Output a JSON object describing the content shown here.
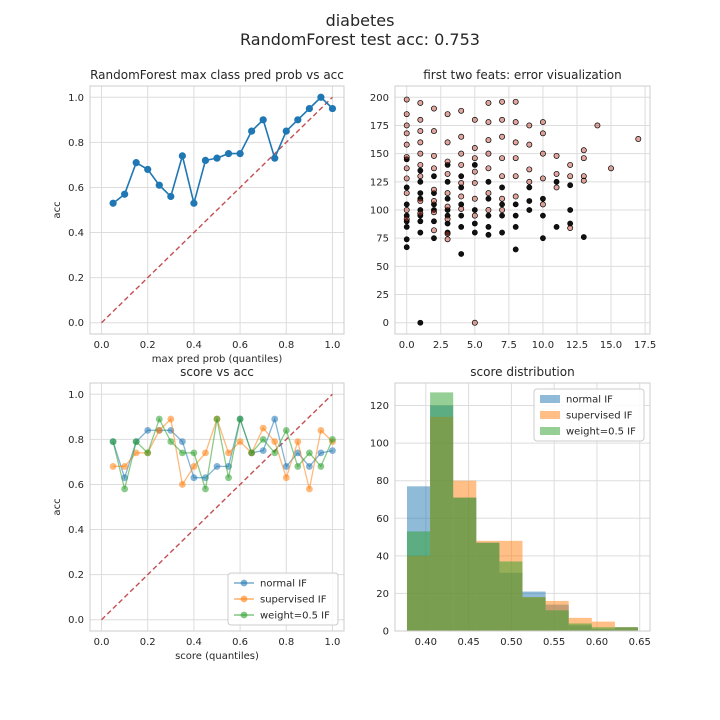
{
  "suptitle": {
    "line1": "diabetes",
    "line2": "RandomForest test acc: 0.753"
  },
  "colors": {
    "blue": "#1f77b4",
    "orange": "#ff7f0e",
    "green": "#2ca02c",
    "diag": "#c44e52",
    "grid": "#dddddd",
    "axes_bg": "#ffffff",
    "spine": "#cccccc",
    "text": "#262626",
    "error_marker": "#c0392b"
  },
  "chart_data": [
    {
      "id": "calibration",
      "type": "line",
      "title": "RandomForest max class pred prob vs acc",
      "xlabel": "max pred prob (quantiles)",
      "ylabel": "acc",
      "xlim": [
        -0.05,
        1.05
      ],
      "ylim": [
        -0.05,
        1.05
      ],
      "xticks": [
        "0.0",
        "0.2",
        "0.4",
        "0.6",
        "0.8",
        "1.0"
      ],
      "yticks": [
        "0.0",
        "0.2",
        "0.4",
        "0.6",
        "0.8",
        "1.0"
      ],
      "grid": true,
      "diagonal": true,
      "series": [
        {
          "color": "blue",
          "x": [
            0.05,
            0.1,
            0.15,
            0.2,
            0.25,
            0.3,
            0.35,
            0.4,
            0.45,
            0.5,
            0.55,
            0.6,
            0.65,
            0.7,
            0.75,
            0.8,
            0.85,
            0.9,
            0.95,
            1.0
          ],
          "y": [
            0.53,
            0.57,
            0.71,
            0.68,
            0.61,
            0.56,
            0.74,
            0.53,
            0.72,
            0.73,
            0.75,
            0.75,
            0.85,
            0.9,
            0.73,
            0.85,
            0.9,
            0.95,
            1.0,
            0.95
          ]
        }
      ]
    },
    {
      "id": "error-scatter",
      "type": "scatter",
      "title": "first two feats: error visualization",
      "xlim": [
        -0.86,
        17.86
      ],
      "ylim": [
        -10,
        210
      ],
      "xticks": [
        "0.0",
        "2.5",
        "5.0",
        "7.5",
        "10.0",
        "12.5",
        "15.0",
        "17.5"
      ],
      "yticks": [
        "0",
        "25",
        "50",
        "75",
        "100",
        "125",
        "150",
        "175",
        "200"
      ],
      "grid": true,
      "legend": "none",
      "correct_points": [
        [
          0,
          145
        ],
        [
          0,
          120
        ],
        [
          0,
          105
        ],
        [
          0,
          95
        ],
        [
          0,
          90
        ],
        [
          0,
          74
        ],
        [
          0,
          67
        ],
        [
          0,
          85
        ],
        [
          1,
          135
        ],
        [
          1,
          125
        ],
        [
          1,
          115
        ],
        [
          1,
          100
        ],
        [
          1,
          95
        ],
        [
          1,
          90
        ],
        [
          1,
          80
        ],
        [
          1,
          0
        ],
        [
          1,
          110
        ],
        [
          2,
          130
        ],
        [
          2,
          115
        ],
        [
          2,
          100
        ],
        [
          2,
          90
        ],
        [
          2,
          75
        ],
        [
          2,
          105
        ],
        [
          3,
          125
        ],
        [
          3,
          110
        ],
        [
          3,
          100
        ],
        [
          3,
          95
        ],
        [
          3,
          88
        ],
        [
          3,
          80
        ],
        [
          3,
          140
        ],
        [
          4,
          120
        ],
        [
          4,
          105
        ],
        [
          4,
          95
        ],
        [
          4,
          85
        ],
        [
          4,
          61
        ],
        [
          4,
          130
        ],
        [
          5,
          100
        ],
        [
          5,
          88
        ],
        [
          5,
          80
        ],
        [
          5,
          140
        ],
        [
          6,
          110
        ],
        [
          6,
          95
        ],
        [
          6,
          85
        ],
        [
          6,
          78
        ],
        [
          6,
          125
        ],
        [
          7,
          120
        ],
        [
          7,
          105
        ],
        [
          7,
          95
        ],
        [
          7,
          80
        ],
        [
          8,
          65
        ],
        [
          8,
          105
        ],
        [
          8,
          95
        ],
        [
          8,
          85
        ],
        [
          9,
          120
        ],
        [
          9,
          100
        ],
        [
          9,
          108
        ],
        [
          10,
          75
        ],
        [
          10,
          95
        ],
        [
          10,
          110
        ],
        [
          11,
          85
        ],
        [
          11,
          125
        ],
        [
          12,
          100
        ],
        [
          12,
          122
        ],
        [
          12,
          88
        ],
        [
          13,
          76
        ]
      ],
      "error_points": [
        [
          0,
          198
        ],
        [
          0,
          185
        ],
        [
          0,
          175
        ],
        [
          0,
          168
        ],
        [
          0,
          158
        ],
        [
          0,
          147
        ],
        [
          0,
          137
        ],
        [
          0,
          128
        ],
        [
          0,
          115
        ],
        [
          0,
          100
        ],
        [
          0,
          92
        ],
        [
          1,
          195
        ],
        [
          1,
          180
        ],
        [
          1,
          170
        ],
        [
          1,
          160
        ],
        [
          1,
          150
        ],
        [
          1,
          140
        ],
        [
          1,
          130
        ],
        [
          1,
          108
        ],
        [
          1,
          97
        ],
        [
          2,
          190
        ],
        [
          2,
          170
        ],
        [
          2,
          148
        ],
        [
          2,
          137
        ],
        [
          2,
          118
        ],
        [
          2,
          108
        ],
        [
          2,
          98
        ],
        [
          2,
          82
        ],
        [
          3,
          185
        ],
        [
          3,
          160
        ],
        [
          3,
          143
        ],
        [
          3,
          132
        ],
        [
          3,
          115
        ],
        [
          3,
          103
        ],
        [
          3,
          92
        ],
        [
          3,
          74
        ],
        [
          3,
          79
        ],
        [
          4,
          188
        ],
        [
          4,
          165
        ],
        [
          4,
          150
        ],
        [
          4,
          140
        ],
        [
          4,
          124
        ],
        [
          4,
          112
        ],
        [
          4,
          101
        ],
        [
          5,
          180
        ],
        [
          5,
          155
        ],
        [
          5,
          146
        ],
        [
          5,
          134
        ],
        [
          5,
          124
        ],
        [
          5,
          110
        ],
        [
          5,
          95
        ],
        [
          5,
          0
        ],
        [
          6,
          195
        ],
        [
          6,
          178
        ],
        [
          6,
          162
        ],
        [
          6,
          150
        ],
        [
          6,
          137
        ],
        [
          6,
          115
        ],
        [
          6,
          100
        ],
        [
          7,
          196
        ],
        [
          7,
          180
        ],
        [
          7,
          165
        ],
        [
          7,
          146
        ],
        [
          7,
          130
        ],
        [
          7,
          110
        ],
        [
          7,
          100
        ],
        [
          8,
          196
        ],
        [
          8,
          178
        ],
        [
          8,
          160
        ],
        [
          8,
          146
        ],
        [
          8,
          130
        ],
        [
          8,
          112
        ],
        [
          9,
          175
        ],
        [
          9,
          158
        ],
        [
          9,
          136
        ],
        [
          9,
          125
        ],
        [
          10,
          178
        ],
        [
          10,
          168
        ],
        [
          10,
          150
        ],
        [
          10,
          128
        ],
        [
          10,
          105
        ],
        [
          11,
          148
        ],
        [
          11,
          132
        ],
        [
          11,
          120
        ],
        [
          12,
          140
        ],
        [
          12,
          130
        ],
        [
          12,
          84
        ],
        [
          13,
          153
        ],
        [
          13,
          146
        ],
        [
          13,
          130
        ],
        [
          13,
          126
        ],
        [
          14,
          175
        ],
        [
          15,
          137
        ],
        [
          17,
          163
        ]
      ]
    },
    {
      "id": "score-vs-acc",
      "type": "line",
      "title": "score vs acc",
      "xlabel": "score (quantiles)",
      "ylabel": "acc",
      "xlim": [
        -0.05,
        1.05
      ],
      "ylim": [
        -0.05,
        1.05
      ],
      "xticks": [
        "0.0",
        "0.2",
        "0.4",
        "0.6",
        "0.8",
        "1.0"
      ],
      "yticks": [
        "0.0",
        "0.2",
        "0.4",
        "0.6",
        "0.8",
        "1.0"
      ],
      "grid": true,
      "diagonal": true,
      "legend": "lower-right",
      "series": [
        {
          "name": "normal IF",
          "color": "blue",
          "x": [
            0.05,
            0.1,
            0.15,
            0.2,
            0.25,
            0.3,
            0.35,
            0.4,
            0.45,
            0.5,
            0.55,
            0.6,
            0.65,
            0.7,
            0.75,
            0.8,
            0.85,
            0.9,
            0.95,
            1.0
          ],
          "y": [
            0.79,
            0.63,
            0.79,
            0.84,
            0.84,
            0.84,
            0.79,
            0.63,
            0.63,
            0.68,
            0.68,
            0.89,
            0.74,
            0.75,
            0.89,
            0.68,
            0.74,
            0.68,
            0.74,
            0.75
          ]
        },
        {
          "name": "supervised IF",
          "color": "orange",
          "x": [
            0.05,
            0.1,
            0.15,
            0.2,
            0.25,
            0.3,
            0.35,
            0.4,
            0.45,
            0.5,
            0.55,
            0.6,
            0.65,
            0.7,
            0.75,
            0.8,
            0.85,
            0.9,
            0.95,
            1.0
          ],
          "y": [
            0.68,
            0.68,
            0.74,
            0.74,
            0.84,
            0.89,
            0.6,
            0.68,
            0.74,
            0.89,
            0.74,
            0.79,
            0.74,
            0.85,
            0.79,
            0.63,
            0.79,
            0.58,
            0.84,
            0.79
          ]
        },
        {
          "name": "weight=0.5 IF",
          "color": "green",
          "x": [
            0.05,
            0.1,
            0.15,
            0.2,
            0.25,
            0.3,
            0.35,
            0.4,
            0.45,
            0.5,
            0.55,
            0.6,
            0.65,
            0.7,
            0.75,
            0.8,
            0.85,
            0.9,
            0.95,
            1.0
          ],
          "y": [
            0.79,
            0.58,
            0.79,
            0.74,
            0.89,
            0.79,
            0.74,
            0.74,
            0.58,
            0.89,
            0.63,
            0.89,
            0.74,
            0.8,
            0.74,
            0.84,
            0.68,
            0.74,
            0.68,
            0.8
          ]
        }
      ]
    },
    {
      "id": "score-distribution",
      "type": "bar",
      "title": "score distribution",
      "xlim": [
        0.364,
        0.662
      ],
      "ylim": [
        0,
        132
      ],
      "xticks": [
        "0.40",
        "0.45",
        "0.50",
        "0.55",
        "0.60",
        "0.65"
      ],
      "yticks": [
        "0",
        "20",
        "40",
        "60",
        "80",
        "100",
        "120"
      ],
      "grid": true,
      "legend": "upper-right",
      "series": [
        {
          "name": "normal IF",
          "color": "blue",
          "bins": [
            [
              0.378,
              0.405,
              77
            ],
            [
              0.405,
              0.432,
              120
            ],
            [
              0.432,
              0.459,
              71
            ],
            [
              0.459,
              0.486,
              47
            ],
            [
              0.486,
              0.513,
              31
            ],
            [
              0.513,
              0.54,
              21
            ],
            [
              0.54,
              0.567,
              14
            ],
            [
              0.567,
              0.594,
              3
            ],
            [
              0.594,
              0.621,
              1
            ],
            [
              0.621,
              0.648,
              2
            ]
          ]
        },
        {
          "name": "supervised IF",
          "color": "orange",
          "bins": [
            [
              0.378,
              0.405,
              40
            ],
            [
              0.405,
              0.432,
              114
            ],
            [
              0.432,
              0.459,
              80
            ],
            [
              0.459,
              0.486,
              48
            ],
            [
              0.486,
              0.513,
              48
            ],
            [
              0.513,
              0.54,
              18
            ],
            [
              0.54,
              0.567,
              16
            ],
            [
              0.567,
              0.594,
              7
            ],
            [
              0.594,
              0.621,
              5
            ],
            [
              0.621,
              0.648,
              2
            ]
          ]
        },
        {
          "name": "weight=0.5 IF",
          "color": "green",
          "bins": [
            [
              0.378,
              0.405,
              53
            ],
            [
              0.405,
              0.432,
              127
            ],
            [
              0.432,
              0.459,
              71
            ],
            [
              0.459,
              0.486,
              47
            ],
            [
              0.486,
              0.513,
              37
            ],
            [
              0.513,
              0.54,
              18
            ],
            [
              0.54,
              0.567,
              11
            ],
            [
              0.567,
              0.594,
              4
            ],
            [
              0.594,
              0.621,
              2
            ],
            [
              0.621,
              0.648,
              2
            ]
          ]
        }
      ]
    }
  ]
}
